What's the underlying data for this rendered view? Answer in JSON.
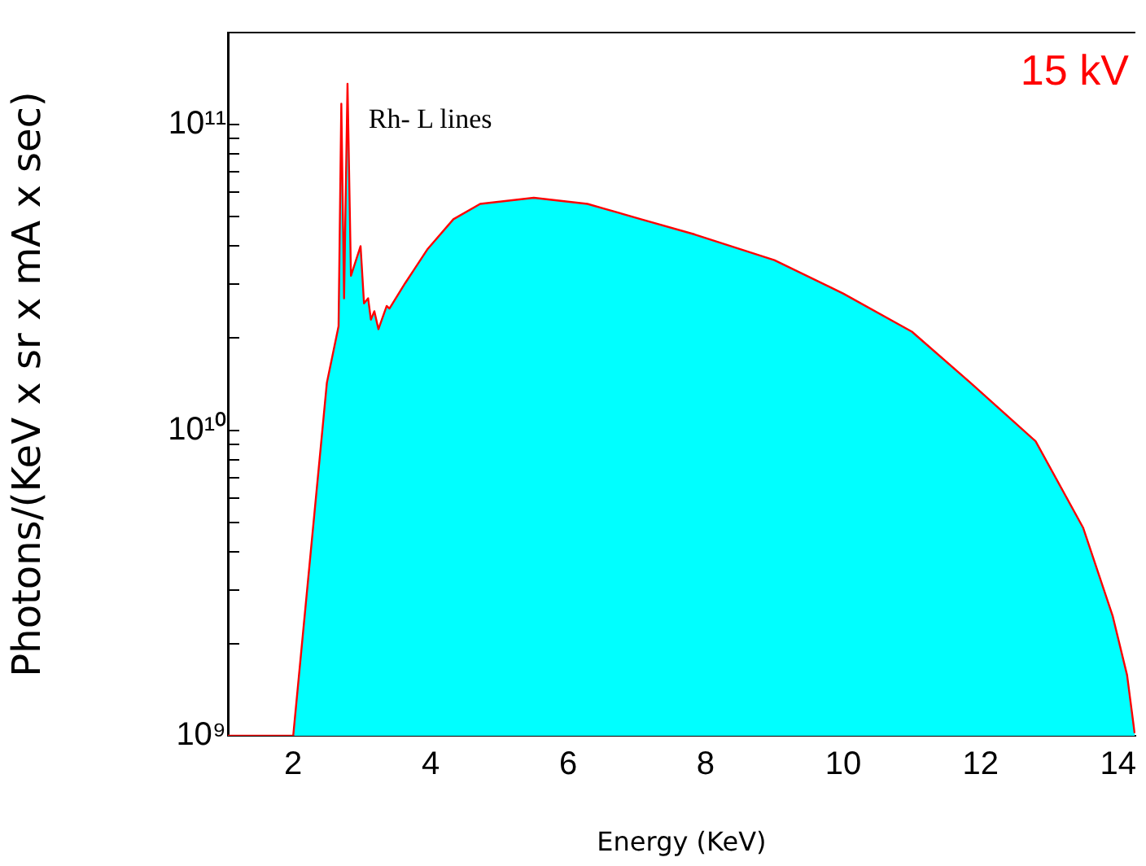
{
  "chart_data": {
    "type": "area",
    "xlabel": "Energy (KeV)",
    "ylabel": "Photons/(KeV x sr x mA x sec)",
    "log": "y",
    "xlim": [
      1.05,
      14.25
    ],
    "ylim": [
      1000000000.0,
      200000000000.0
    ],
    "xticks": [
      2,
      4,
      6,
      8,
      10,
      12,
      14
    ],
    "yticks": [
      {
        "value": 1000000000.0,
        "label": "10⁹"
      },
      {
        "value": 2000000000.0,
        "label": null
      },
      {
        "value": 3000000000.0,
        "label": null
      },
      {
        "value": 4000000000.0,
        "label": null
      },
      {
        "value": 5000000000.0,
        "label": null
      },
      {
        "value": 6000000000.0,
        "label": null
      },
      {
        "value": 7000000000.0,
        "label": null
      },
      {
        "value": 8000000000.0,
        "label": null
      },
      {
        "value": 9000000000.0,
        "label": null
      },
      {
        "value": 10000000000.0,
        "label": "10¹⁰"
      },
      {
        "value": 20000000000.0,
        "label": null
      },
      {
        "value": 30000000000.0,
        "label": null
      },
      {
        "value": 40000000000.0,
        "label": null
      },
      {
        "value": 50000000000.0,
        "label": null
      },
      {
        "value": 60000000000.0,
        "label": null
      },
      {
        "value": 70000000000.0,
        "label": null
      },
      {
        "value": 80000000000.0,
        "label": null
      },
      {
        "value": 90000000000.0,
        "label": null
      },
      {
        "value": 100000000000.0,
        "label": "10¹¹"
      }
    ],
    "grid": false,
    "legend": false,
    "marker": "none",
    "annotations": [
      "15 kV",
      "Rh- L lines"
    ],
    "series": [
      {
        "color": "#00ffff",
        "x": [
          1.05,
          2.0,
          2.49,
          2.66,
          2.7,
          2.74,
          2.79,
          2.84,
          2.98,
          3.03,
          3.09,
          3.13,
          3.18,
          3.24,
          3.36,
          3.4,
          3.63,
          3.95,
          4.33,
          4.72,
          5.5,
          6.28,
          7.06,
          7.84,
          9,
          10,
          11,
          11.85,
          12.8,
          13.49,
          13.92,
          14.13,
          14.24
        ],
        "values": [
          1000000000.0,
          1000000000.0,
          14300000000.0,
          21900000000.0,
          117000000000.0,
          27000000000.0,
          136000000000.0,
          32000000000.0,
          40000000000.0,
          26000000000.0,
          27000000000.0,
          23000000000.0,
          24500000000.0,
          21400000000.0,
          25500000000.0,
          25000000000.0,
          30300000000.0,
          39000000000.0,
          49000000000.0,
          55000000000.0,
          57600000000.0,
          55000000000.0,
          49000000000.0,
          43700000000.0,
          36000000000.0,
          28000000000.0,
          21000000000.0,
          14300000000.0,
          9200000000.0,
          4800000000.0,
          2470000000.0,
          1580000000.0,
          1020000000.0
        ]
      }
    ]
  }
}
